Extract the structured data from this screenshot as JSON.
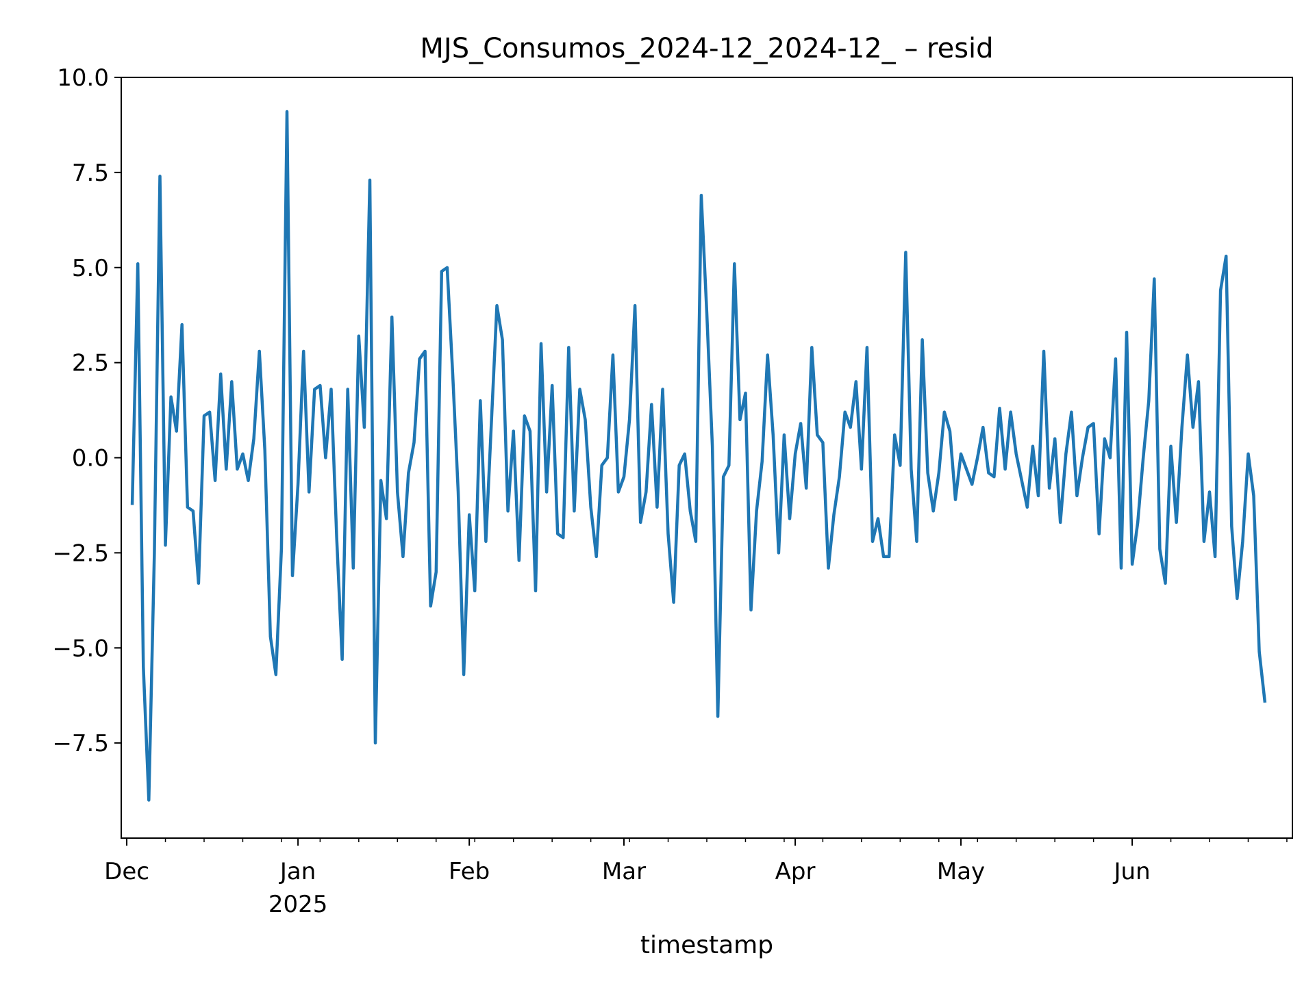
{
  "chart_data": {
    "type": "line",
    "title": "MJS_Consumos_2024-12_2024-12_ – resid",
    "xlabel": "timestamp",
    "ylabel": "",
    "x_start": "2024-12-02",
    "x_end": "2025-06-29",
    "xlim": [
      "2024-11-30",
      "2025-06-30"
    ],
    "ylim": [
      -10,
      10
    ],
    "grid": false,
    "legend": "none",
    "line_color": "#1f77b4",
    "y_ticks": [
      {
        "value": 10,
        "label": "10.0"
      },
      {
        "value": 7.5,
        "label": "7.5"
      },
      {
        "value": 5,
        "label": "5.0"
      },
      {
        "value": 2.5,
        "label": "2.5"
      },
      {
        "value": 0,
        "label": "0.0"
      },
      {
        "value": -2.5,
        "label": "−2.5"
      },
      {
        "value": -5,
        "label": "−5.0"
      },
      {
        "value": -7.5,
        "label": "−7.5"
      }
    ],
    "x_major_ticks": [
      {
        "date": "2024-12-01",
        "label": "Dec",
        "sublabel": ""
      },
      {
        "date": "2025-01-01",
        "label": "Jan",
        "sublabel": "2025"
      },
      {
        "date": "2025-02-01",
        "label": "Feb",
        "sublabel": ""
      },
      {
        "date": "2025-03-01",
        "label": "Mar",
        "sublabel": ""
      },
      {
        "date": "2025-04-01",
        "label": "Apr",
        "sublabel": ""
      },
      {
        "date": "2025-05-01",
        "label": "May",
        "sublabel": ""
      },
      {
        "date": "2025-06-01",
        "label": "Jun",
        "sublabel": ""
      }
    ],
    "series": [
      {
        "values": [
          -1.2,
          5.1,
          -5.5,
          -9.0,
          -2.5,
          7.4,
          -2.3,
          1.6,
          0.7,
          3.5,
          -1.3,
          -1.4,
          -3.3,
          1.1,
          1.2,
          -0.6,
          2.2,
          -0.3,
          2.0,
          -0.3,
          0.1,
          -0.6,
          0.5,
          2.8,
          0.2,
          -4.7,
          -5.7,
          -2.4,
          9.1,
          -3.1,
          -0.7,
          2.8,
          -0.9,
          1.8,
          1.9,
          0.0,
          1.8,
          -2.1,
          -5.3,
          1.8,
          -2.9,
          3.2,
          0.8,
          7.3,
          -7.5,
          -0.6,
          -1.6,
          3.7,
          -0.9,
          -2.6,
          -0.4,
          0.4,
          2.6,
          2.8,
          -3.9,
          -3.0,
          4.9,
          5.0,
          2.2,
          -0.9,
          -5.7,
          -1.5,
          -3.5,
          1.5,
          -2.2,
          0.9,
          4.0,
          3.1,
          -1.4,
          0.7,
          -2.7,
          1.1,
          0.7,
          -3.5,
          3.0,
          -0.9,
          1.9,
          -2.0,
          -2.1,
          2.9,
          -1.4,
          1.8,
          1.0,
          -1.3,
          -2.6,
          -0.2,
          0.0,
          2.7,
          -0.9,
          -0.5,
          1.0,
          4.0,
          -1.7,
          -0.9,
          1.4,
          -1.3,
          1.8,
          -2.0,
          -3.8,
          -0.2,
          0.1,
          -1.4,
          -2.2,
          6.9,
          3.8,
          0.3,
          -6.8,
          -0.5,
          -0.2,
          5.1,
          1.0,
          1.7,
          -4.0,
          -1.4,
          -0.1,
          2.7,
          0.6,
          -2.5,
          0.6,
          -1.6,
          0.1,
          0.9,
          -0.8,
          2.9,
          0.6,
          0.4,
          -2.9,
          -1.5,
          -0.5,
          1.2,
          0.8,
          2.0,
          -0.3,
          2.9,
          -2.2,
          -1.6,
          -2.6,
          -2.6,
          0.6,
          -0.2,
          5.4,
          -0.3,
          -2.2,
          3.1,
          -0.4,
          -1.4,
          -0.4,
          1.2,
          0.7,
          -1.1,
          0.1,
          -0.3,
          -0.7,
          0.0,
          0.8,
          -0.4,
          -0.5,
          1.3,
          -0.3,
          1.2,
          0.1,
          -0.6,
          -1.3,
          0.3,
          -1.0,
          2.8,
          -0.8,
          0.5,
          -1.7,
          0.1,
          1.2,
          -1.0,
          0.0,
          0.8,
          0.9,
          -2.0,
          0.5,
          0.0,
          2.6,
          -2.9,
          3.3,
          -2.8,
          -1.7,
          0.0,
          1.5,
          4.7,
          -2.4,
          -3.3,
          0.3,
          -1.7,
          0.8,
          2.7,
          0.8,
          2.0,
          -2.2,
          -0.9,
          -2.6,
          4.4,
          5.3,
          -1.8,
          -3.7,
          -2.2,
          0.1,
          -1.0,
          -5.1,
          -6.4
        ]
      }
    ]
  }
}
